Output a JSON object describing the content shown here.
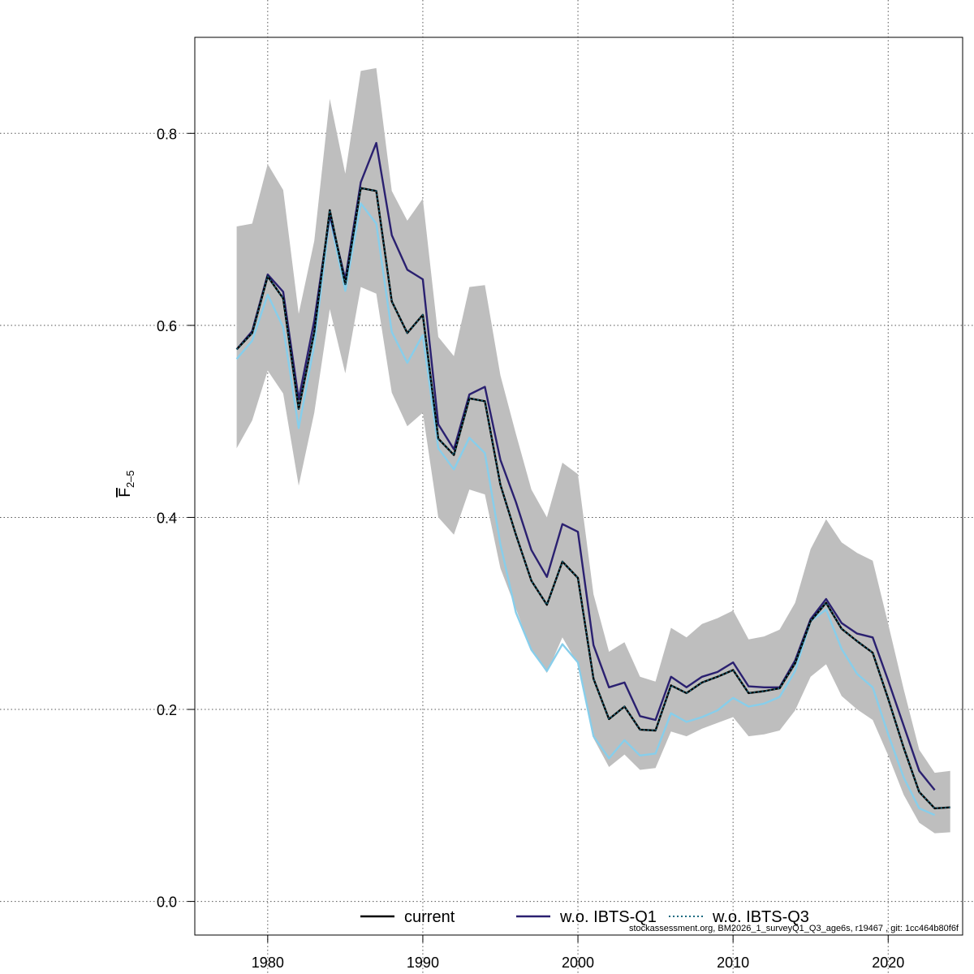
{
  "chart_data": {
    "type": "line",
    "ylabel": "F̄ 2–5",
    "ylabel_parts": {
      "main": "F",
      "sub": "2–5"
    },
    "xlim": [
      1975.3,
      2024.8
    ],
    "ylim": [
      -0.035,
      0.9
    ],
    "x_ticks": [
      1980,
      1990,
      2000,
      2010,
      2020
    ],
    "y_ticks": [
      0.0,
      0.2,
      0.4,
      0.6,
      0.8
    ],
    "x_tick_labels": [
      "1980",
      "1990",
      "2000",
      "2010",
      "2020"
    ],
    "y_tick_labels": [
      "0.0",
      "0.2",
      "0.4",
      "0.6",
      "0.8"
    ],
    "grid": true,
    "legend_position": "bottom",
    "x": [
      1978,
      1979,
      1980,
      1981,
      1982,
      1983,
      1984,
      1985,
      1986,
      1987,
      1988,
      1989,
      1990,
      1991,
      1992,
      1993,
      1994,
      1995,
      1996,
      1997,
      1998,
      1999,
      2000,
      2001,
      2002,
      2003,
      2004,
      2005,
      2006,
      2007,
      2008,
      2009,
      2010,
      2011,
      2012,
      2013,
      2014,
      2015,
      2016,
      2017,
      2018,
      2019,
      2020,
      2021,
      2022,
      2023,
      2024
    ],
    "band": {
      "upper": [
        0.703,
        0.706,
        0.768,
        0.741,
        0.612,
        0.688,
        0.836,
        0.758,
        0.865,
        0.868,
        0.74,
        0.709,
        0.732,
        0.588,
        0.568,
        0.64,
        0.642,
        0.548,
        0.487,
        0.429,
        0.4,
        0.457,
        0.445,
        0.32,
        0.26,
        0.27,
        0.234,
        0.229,
        0.285,
        0.275,
        0.289,
        0.295,
        0.303,
        0.273,
        0.276,
        0.283,
        0.311,
        0.367,
        0.398,
        0.374,
        0.363,
        0.355,
        0.289,
        0.221,
        0.158,
        0.134,
        0.136
      ],
      "lower": [
        0.472,
        0.501,
        0.553,
        0.529,
        0.433,
        0.509,
        0.617,
        0.55,
        0.64,
        0.633,
        0.53,
        0.495,
        0.509,
        0.4,
        0.382,
        0.429,
        0.424,
        0.347,
        0.305,
        0.262,
        0.238,
        0.275,
        0.247,
        0.17,
        0.14,
        0.153,
        0.137,
        0.139,
        0.177,
        0.172,
        0.18,
        0.186,
        0.192,
        0.172,
        0.174,
        0.178,
        0.199,
        0.234,
        0.247,
        0.214,
        0.2,
        0.189,
        0.152,
        0.111,
        0.082,
        0.071,
        0.072
      ]
    },
    "series": [
      {
        "name": "current",
        "color": "#000000",
        "dash": "solid",
        "values": [
          0.575,
          0.592,
          0.651,
          0.628,
          0.513,
          0.593,
          0.72,
          0.643,
          0.743,
          0.74,
          0.625,
          0.592,
          0.611,
          0.482,
          0.465,
          0.524,
          0.521,
          0.434,
          0.382,
          0.334,
          0.309,
          0.354,
          0.337,
          0.232,
          0.19,
          0.203,
          0.179,
          0.178,
          0.225,
          0.217,
          0.228,
          0.234,
          0.241,
          0.217,
          0.219,
          0.222,
          0.248,
          0.292,
          0.311,
          0.284,
          0.271,
          0.259,
          0.211,
          0.16,
          0.114,
          0.097,
          0.098
        ]
      },
      {
        "name": "w.o. IBTS-Q1",
        "color": "#2a2070",
        "dash": "solid",
        "values": [
          0.575,
          0.594,
          0.653,
          0.635,
          0.523,
          0.605,
          0.715,
          0.648,
          0.749,
          0.79,
          0.694,
          0.658,
          0.648,
          0.497,
          0.471,
          0.528,
          0.536,
          0.46,
          0.416,
          0.366,
          0.338,
          0.393,
          0.385,
          0.267,
          0.223,
          0.228,
          0.193,
          0.189,
          0.234,
          0.223,
          0.234,
          0.239,
          0.249,
          0.224,
          0.223,
          0.223,
          0.251,
          0.294,
          0.315,
          0.29,
          0.279,
          0.275,
          0.23,
          0.183,
          0.136,
          0.116,
          null
        ]
      },
      {
        "name": "w.o. IBTS-Q3",
        "color": "#1a6a80",
        "dash": "dotted",
        "values": [
          0.575,
          0.592,
          0.651,
          0.628,
          0.513,
          0.593,
          0.72,
          0.643,
          0.743,
          0.74,
          0.625,
          0.592,
          0.611,
          0.482,
          0.465,
          0.524,
          0.521,
          0.434,
          0.382,
          0.334,
          0.309,
          0.354,
          0.337,
          0.232,
          0.19,
          0.203,
          0.179,
          0.178,
          0.225,
          0.217,
          0.228,
          0.234,
          0.241,
          0.217,
          0.219,
          0.222,
          0.248,
          0.292,
          0.311,
          0.284,
          0.271,
          0.259,
          0.211,
          0.16,
          0.114,
          0.097,
          0.098
        ]
      },
      {
        "name": "",
        "color": "#87ceeb",
        "dash": "solid",
        "values": [
          0.565,
          0.584,
          0.632,
          0.598,
          0.493,
          0.58,
          0.712,
          0.636,
          0.727,
          0.706,
          0.593,
          0.561,
          0.59,
          0.472,
          0.45,
          0.483,
          0.467,
          0.372,
          0.301,
          0.262,
          0.24,
          0.268,
          0.249,
          0.172,
          0.149,
          0.168,
          0.152,
          0.154,
          0.196,
          0.187,
          0.192,
          0.199,
          0.212,
          0.203,
          0.206,
          0.213,
          0.24,
          0.292,
          0.304,
          0.263,
          0.237,
          0.223,
          0.174,
          0.129,
          0.097,
          0.09,
          null
        ]
      }
    ],
    "band_color": "#bebebe"
  },
  "legend": {
    "items": [
      {
        "label": "current",
        "color": "#000000",
        "dash": "solid"
      },
      {
        "label": "w.o. IBTS-Q1",
        "color": "#2a2070",
        "dash": "solid"
      },
      {
        "label": "w.o. IBTS-Q3",
        "color": "#1a6a80",
        "dash": "dotted"
      }
    ]
  },
  "footer": {
    "text": "stockassessment.org, BM2026_1_surveyQ1_Q3_age6s, r19467 , git: 1cc464b80f6f"
  }
}
